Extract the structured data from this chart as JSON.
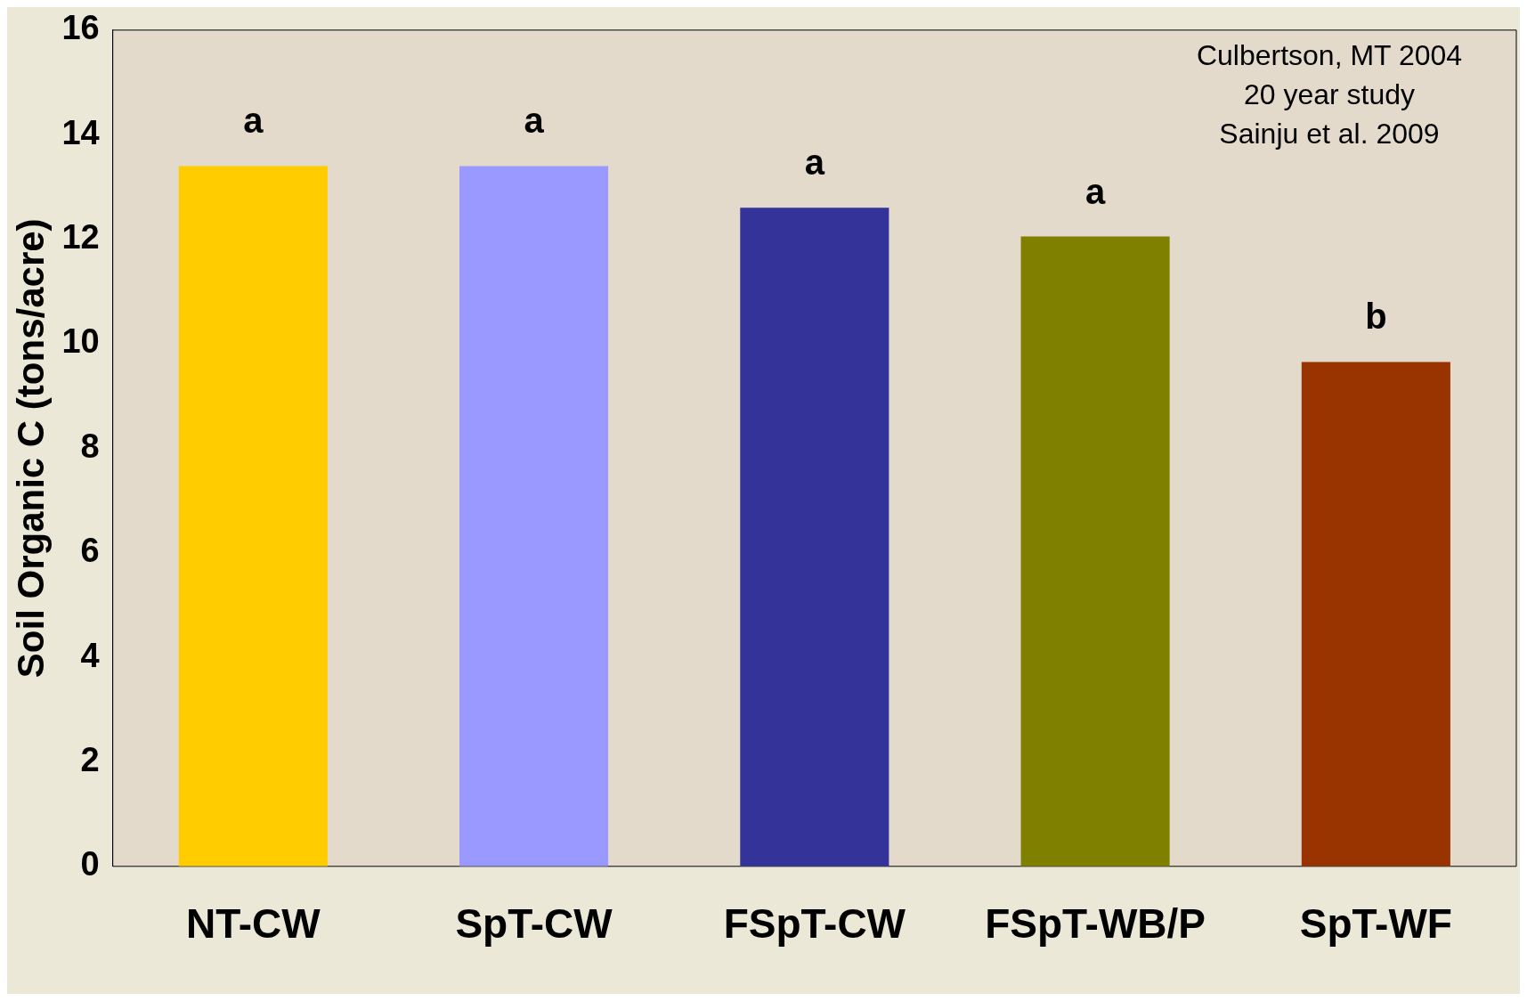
{
  "chart_data": {
    "type": "bar",
    "ylabel": "Soil Organic C (tons/acre)",
    "categories": [
      "NT-CW",
      "SpT-CW",
      "FSpT-CW",
      "FSpT-WB/P",
      "SpT-WF"
    ],
    "values": [
      13.4,
      13.4,
      12.6,
      12.05,
      9.65
    ],
    "colors": [
      "#ffcc00",
      "#9999ff",
      "#333399",
      "#808000",
      "#993300"
    ],
    "ylim": [
      0,
      16
    ],
    "yticks": [
      0,
      2,
      4,
      6,
      8,
      10,
      12,
      14,
      16
    ],
    "grid": false,
    "legend": false,
    "annotations": [
      {
        "text": "a",
        "x": "NT-CW",
        "y": 13.4
      },
      {
        "text": "a",
        "x": "SpT-CW",
        "y": 13.4
      },
      {
        "text": "a",
        "x": "FSpT-CW",
        "y": 12.6
      },
      {
        "text": "a",
        "x": "FSpT-WB/P",
        "y": 12.05
      },
      {
        "text": "b",
        "x": "SpT-WF",
        "y": 9.65
      },
      "Culbertson, MT 2004",
      "20 year study",
      "Sainju et al. 2009"
    ]
  }
}
